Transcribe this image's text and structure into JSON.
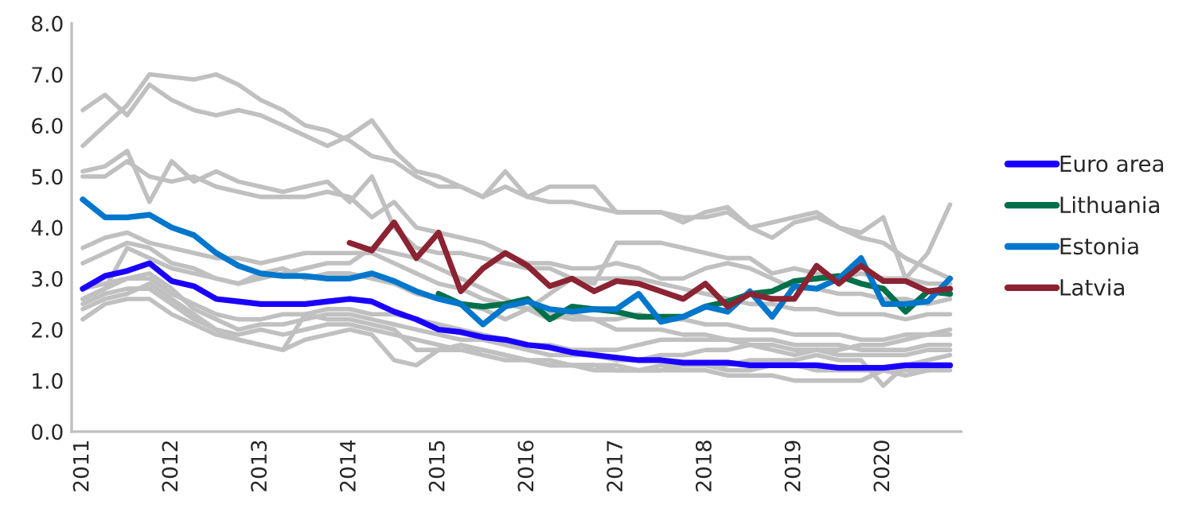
{
  "chart_data": {
    "type": "line",
    "categories": [
      "2011",
      null,
      null,
      null,
      "2012",
      null,
      null,
      null,
      "2013",
      null,
      null,
      null,
      "2014",
      null,
      null,
      null,
      "2015",
      null,
      null,
      null,
      "2016",
      null,
      null,
      null,
      "2017",
      null,
      null,
      null,
      "2018",
      null,
      null,
      null,
      "2019",
      null,
      null,
      null,
      "2020",
      null,
      null,
      null
    ],
    "ylim": [
      0,
      8
    ],
    "yticks": [
      {
        "value": 0,
        "label": "0.0"
      },
      {
        "value": 1,
        "label": "1.0"
      },
      {
        "value": 2,
        "label": "2.0"
      },
      {
        "value": 3,
        "label": "3.0"
      },
      {
        "value": 4,
        "label": "4.0"
      },
      {
        "value": 5,
        "label": "5.0"
      },
      {
        "value": 6,
        "label": "6.0"
      },
      {
        "value": 7,
        "label": "7.0"
      },
      {
        "value": 8,
        "label": "8.0"
      }
    ],
    "grid": false,
    "legend": "right",
    "series": [
      {
        "color": "#c0c0c0",
        "values": [
          5.6,
          6.0,
          6.4,
          7.0,
          6.95,
          6.9,
          7.0,
          6.8,
          6.5,
          6.3,
          6.0,
          5.9,
          5.7,
          5.4,
          5.3,
          5.0,
          4.8,
          4.8,
          4.6,
          4.8,
          4.6,
          4.5,
          4.5,
          4.4,
          4.3,
          4.3,
          4.3,
          4.2,
          4.2,
          4.3,
          4.0,
          4.1,
          4.2,
          4.3,
          4.0,
          3.9,
          4.2,
          3.0,
          3.5,
          4.45
        ]
      },
      {
        "color": "#c0c0c0",
        "values": [
          6.3,
          6.6,
          6.2,
          6.8,
          6.5,
          6.3,
          6.2,
          6.3,
          6.2,
          6.0,
          5.8,
          5.6,
          5.8,
          6.1,
          5.5,
          5.1,
          5.0,
          4.8,
          4.6,
          5.1,
          4.6,
          4.8,
          4.8,
          4.8,
          4.3,
          4.3,
          4.3,
          4.1,
          4.3,
          4.4,
          4.0,
          3.8,
          4.1,
          4.2,
          4.0,
          3.8,
          3.7,
          3.4,
          3.2,
          3.0
        ]
      },
      {
        "color": "#c0c0c0",
        "values": [
          5.1,
          5.2,
          5.5,
          4.5,
          5.3,
          4.9,
          5.1,
          4.9,
          4.8,
          4.7,
          4.8,
          4.9,
          4.5,
          5.0,
          4.0,
          3.6,
          3.5,
          3.5,
          3.4,
          3.3,
          3.2,
          3.2,
          3.0,
          2.9,
          3.7,
          3.7,
          3.7,
          3.6,
          3.5,
          3.4,
          3.4,
          3.1,
          3.2,
          3.1,
          3.0,
          3.1,
          3.0,
          3.0,
          2.9,
          2.9
        ]
      },
      {
        "color": "#c0c0c0",
        "values": [
          5.0,
          5.0,
          5.3,
          5.0,
          4.9,
          5.0,
          4.8,
          4.7,
          4.6,
          4.6,
          4.6,
          4.7,
          4.6,
          4.2,
          4.5,
          4.0,
          3.9,
          3.8,
          3.7,
          3.5,
          3.3,
          3.3,
          3.2,
          3.2,
          3.3,
          3.2,
          3.0,
          3.0,
          3.2,
          3.3,
          3.2,
          3.0,
          2.8,
          2.8,
          2.7,
          2.7,
          2.6,
          2.6,
          2.5,
          2.6
        ]
      },
      {
        "color": "#c0c0c0",
        "values": [
          3.3,
          3.5,
          3.7,
          3.6,
          3.3,
          3.2,
          3.0,
          2.9,
          3.0,
          3.1,
          3.2,
          3.3,
          3.3,
          3.6,
          3.5,
          3.4,
          3.2,
          3.0,
          2.8,
          2.6,
          2.4,
          2.2,
          2.3,
          2.2,
          2.2,
          2.3,
          2.2,
          2.2,
          2.1,
          2.1,
          2.0,
          2.0,
          1.9,
          1.9,
          1.9,
          1.8,
          1.8,
          1.9,
          1.9,
          2.0
        ]
      },
      {
        "color": "#c0c0c0",
        "values": [
          3.6,
          3.8,
          3.9,
          3.7,
          3.6,
          3.5,
          3.4,
          3.4,
          3.3,
          3.4,
          3.5,
          3.5,
          3.5,
          3.5,
          3.3,
          3.1,
          2.9,
          2.8,
          2.6,
          2.5,
          2.4,
          2.3,
          2.2,
          2.2,
          2.0,
          2.0,
          2.0,
          1.9,
          1.9,
          1.8,
          1.8,
          1.8,
          1.7,
          1.7,
          1.7,
          1.6,
          1.6,
          1.6,
          1.7,
          1.7
        ]
      },
      {
        "color": "#c0c0c0",
        "values": [
          2.6,
          2.8,
          3.0,
          3.1,
          2.8,
          2.4,
          2.2,
          2.0,
          2.1,
          2.1,
          2.2,
          2.3,
          2.3,
          2.2,
          2.1,
          2.0,
          1.9,
          1.8,
          1.8,
          1.7,
          1.6,
          1.5,
          1.5,
          1.5,
          1.4,
          1.4,
          1.5,
          1.5,
          1.6,
          1.6,
          1.7,
          1.6,
          1.5,
          1.6,
          1.6,
          1.7,
          1.7,
          1.8,
          1.9,
          1.9
        ]
      },
      {
        "color": "#c0c0c0",
        "values": [
          2.4,
          2.6,
          2.7,
          2.9,
          2.6,
          2.3,
          2.0,
          1.9,
          2.0,
          1.9,
          2.0,
          2.1,
          2.1,
          2.0,
          1.9,
          1.8,
          1.7,
          1.6,
          1.6,
          1.5,
          1.4,
          1.4,
          1.3,
          1.3,
          1.3,
          1.2,
          1.2,
          1.2,
          1.2,
          1.1,
          1.1,
          1.1,
          1.0,
          1.0,
          1.0,
          1.0,
          1.2,
          1.1,
          1.2,
          1.2
        ]
      },
      {
        "color": "#c0c0c0",
        "values": [
          2.2,
          2.5,
          2.6,
          2.6,
          2.3,
          2.1,
          1.9,
          1.8,
          1.7,
          1.6,
          2.3,
          2.2,
          2.2,
          2.1,
          2.0,
          1.6,
          1.6,
          1.7,
          1.6,
          1.5,
          1.4,
          1.3,
          1.3,
          1.3,
          1.2,
          1.2,
          1.2,
          1.3,
          1.3,
          1.3,
          1.4,
          1.4,
          1.4,
          1.5,
          1.4,
          1.4,
          0.9,
          1.3,
          1.4,
          1.5
        ]
      },
      {
        "color": "#c0c0c0",
        "values": [
          2.8,
          2.9,
          3.0,
          3.0,
          2.7,
          2.5,
          2.3,
          2.2,
          2.2,
          2.3,
          2.3,
          2.4,
          2.4,
          2.3,
          2.3,
          2.2,
          2.1,
          2.0,
          1.9,
          1.8,
          1.7,
          1.7,
          1.6,
          1.6,
          1.6,
          1.7,
          1.8,
          1.8,
          1.8,
          1.8,
          1.7,
          1.7,
          1.6,
          1.6,
          1.5,
          1.5,
          1.5,
          1.5,
          1.6,
          1.6
        ]
      },
      {
        "color": "#c0c0c0",
        "values": [
          2.5,
          2.7,
          2.8,
          2.8,
          2.5,
          2.2,
          2.0,
          1.8,
          1.7,
          1.6,
          1.8,
          1.9,
          2.0,
          1.9,
          1.4,
          1.3,
          1.6,
          1.6,
          1.5,
          1.4,
          1.4,
          1.3,
          1.3,
          1.2,
          1.2,
          1.2,
          1.3,
          1.3,
          1.3,
          1.2,
          1.2,
          1.3,
          1.3,
          1.2,
          1.2,
          1.2,
          1.2,
          1.2,
          1.2,
          1.3
        ]
      },
      {
        "color": "#c0c0c0",
        "values": [
          2.6,
          2.8,
          3.6,
          3.4,
          3.2,
          3.1,
          3.0,
          2.9,
          3.1,
          3.2,
          3.0,
          3.1,
          3.1,
          3.0,
          2.9,
          2.7,
          2.6,
          2.5,
          2.4,
          2.2,
          2.4,
          2.7,
          3.0,
          3.0,
          3.0,
          3.0,
          2.9,
          2.8,
          2.7,
          2.6,
          2.5,
          2.5,
          2.4,
          2.4,
          2.3,
          2.3,
          2.3,
          2.2,
          2.3,
          2.3
        ]
      },
      {
        "name": "Euro area",
        "color": "#1a00ff",
        "values": [
          2.8,
          3.05,
          3.15,
          3.3,
          2.95,
          2.85,
          2.6,
          2.55,
          2.5,
          2.5,
          2.5,
          2.55,
          2.6,
          2.55,
          2.35,
          2.2,
          2.0,
          1.95,
          1.85,
          1.8,
          1.7,
          1.65,
          1.55,
          1.5,
          1.45,
          1.4,
          1.4,
          1.35,
          1.35,
          1.35,
          1.3,
          1.3,
          1.3,
          1.3,
          1.25,
          1.25,
          1.25,
          1.3,
          1.3,
          1.3
        ]
      },
      {
        "name": "Lithuania",
        "color": "#00704a",
        "values": [
          null,
          null,
          null,
          null,
          null,
          null,
          null,
          null,
          null,
          null,
          null,
          null,
          null,
          null,
          null,
          null,
          2.7,
          2.5,
          2.45,
          2.5,
          2.6,
          2.2,
          2.45,
          2.4,
          2.35,
          2.25,
          2.25,
          2.25,
          2.45,
          2.55,
          2.7,
          2.75,
          2.95,
          3.0,
          3.05,
          2.9,
          2.8,
          2.35,
          2.75,
          2.7
        ]
      },
      {
        "name": "Estonia",
        "color": "#0077cc",
        "values": [
          4.55,
          4.2,
          4.2,
          4.25,
          4.0,
          3.85,
          3.5,
          3.25,
          3.1,
          3.05,
          3.05,
          3.0,
          3.0,
          3.1,
          2.95,
          2.75,
          2.6,
          2.5,
          2.1,
          2.45,
          2.55,
          2.4,
          2.35,
          2.4,
          2.4,
          2.7,
          2.15,
          2.25,
          2.45,
          2.35,
          2.75,
          2.25,
          2.85,
          2.8,
          3.0,
          3.4,
          2.5,
          2.5,
          2.55,
          3.0
        ]
      },
      {
        "name": "Latvia",
        "color": "#8b2332",
        "values": [
          null,
          null,
          null,
          null,
          null,
          null,
          null,
          null,
          null,
          null,
          null,
          null,
          3.7,
          3.55,
          4.1,
          3.4,
          3.9,
          2.75,
          3.2,
          3.5,
          3.25,
          2.85,
          3.0,
          2.75,
          2.95,
          2.9,
          2.75,
          2.6,
          2.9,
          2.45,
          2.7,
          2.6,
          2.6,
          3.25,
          2.9,
          3.25,
          2.95,
          2.95,
          2.75,
          2.8
        ]
      }
    ]
  }
}
